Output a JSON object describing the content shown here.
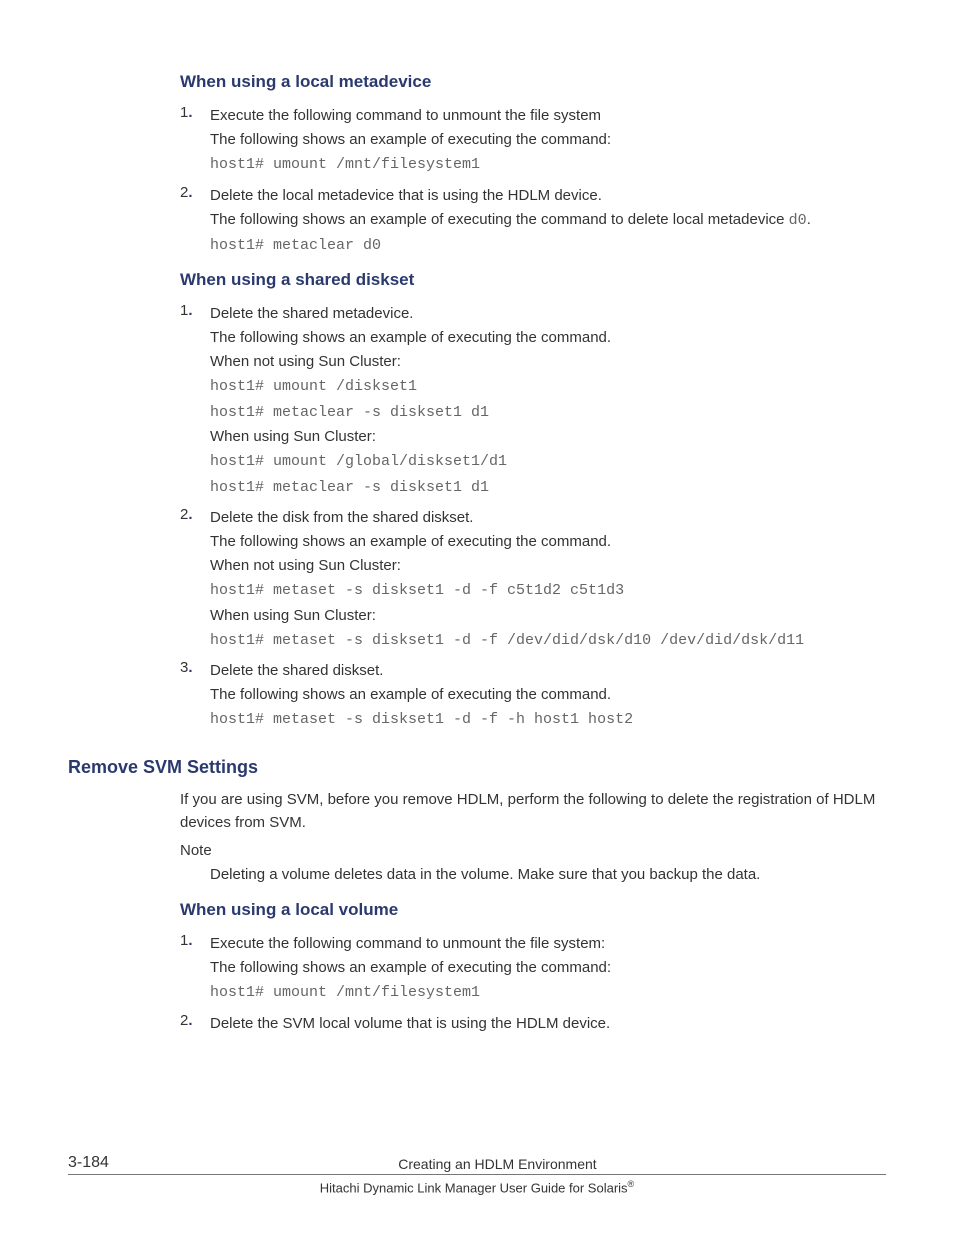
{
  "section1": {
    "heading": "When using a local metadevice",
    "items": [
      {
        "num": "1",
        "lines": [
          {
            "t": "text",
            "v": "Execute the following command to unmount the file system"
          },
          {
            "t": "text",
            "v": "The following shows an example of executing the command:"
          },
          {
            "t": "code",
            "v": "host1# umount /mnt/filesystem1"
          }
        ]
      },
      {
        "num": "2",
        "lines": [
          {
            "t": "text",
            "v": "Delete the local metadevice that is using the HDLM device."
          },
          {
            "t": "mixed",
            "prefix": "The following shows an example of executing the command to delete local metadevice ",
            "code": "d0",
            "suffix": "."
          },
          {
            "t": "code",
            "v": "host1# metaclear d0"
          }
        ]
      }
    ]
  },
  "section2": {
    "heading": "When using a shared diskset",
    "items": [
      {
        "num": "1",
        "lines": [
          {
            "t": "text",
            "v": "Delete the shared metadevice."
          },
          {
            "t": "text",
            "v": "The following shows an example of executing the command."
          },
          {
            "t": "text",
            "v": "When not using Sun Cluster:"
          },
          {
            "t": "code",
            "v": "host1# umount /diskset1"
          },
          {
            "t": "code",
            "v": "host1# metaclear -s diskset1 d1"
          },
          {
            "t": "text",
            "v": "When using Sun Cluster:"
          },
          {
            "t": "code",
            "v": "host1# umount /global/diskset1/d1"
          },
          {
            "t": "code",
            "v": "host1# metaclear -s diskset1 d1"
          }
        ]
      },
      {
        "num": "2",
        "lines": [
          {
            "t": "text",
            "v": "Delete the disk from the shared diskset."
          },
          {
            "t": "text",
            "v": "The following shows an example of executing the command."
          },
          {
            "t": "text",
            "v": "When not using Sun Cluster:"
          },
          {
            "t": "code",
            "v": "host1# metaset -s diskset1 -d -f c5t1d2 c5t1d3"
          },
          {
            "t": "text",
            "v": "When using Sun Cluster:"
          },
          {
            "t": "code",
            "v": "host1# metaset -s diskset1 -d -f /dev/did/dsk/d10 /dev/did/dsk/d11"
          }
        ]
      },
      {
        "num": "3",
        "lines": [
          {
            "t": "text",
            "v": "Delete the shared diskset."
          },
          {
            "t": "text",
            "v": "The following shows an example of executing the command."
          },
          {
            "t": "code",
            "v": "host1# metaset -s diskset1 -d -f -h host1 host2"
          }
        ]
      }
    ]
  },
  "h2": "Remove SVM Settings",
  "para1": "If you are using SVM, before you remove HDLM, perform the following to delete the registration of HDLM devices from SVM.",
  "noteLabel": "Note",
  "noteBody": "Deleting a volume deletes data in the volume. Make sure that you backup the data.",
  "section3": {
    "heading": "When using a local volume",
    "items": [
      {
        "num": "1",
        "lines": [
          {
            "t": "text",
            "v": "Execute the following command to unmount the file system:"
          },
          {
            "t": "text",
            "v": "The following shows an example of executing the command:"
          },
          {
            "t": "code",
            "v": "host1# umount /mnt/filesystem1"
          }
        ]
      },
      {
        "num": "2",
        "lines": [
          {
            "t": "text",
            "v": "Delete the SVM local volume that is using the HDLM device."
          }
        ]
      }
    ]
  },
  "footer": {
    "page": "3-184",
    "title": "Creating an HDLM Environment",
    "sub_prefix": "Hitachi Dynamic Link Manager User Guide for Solaris",
    "reg": "®"
  }
}
